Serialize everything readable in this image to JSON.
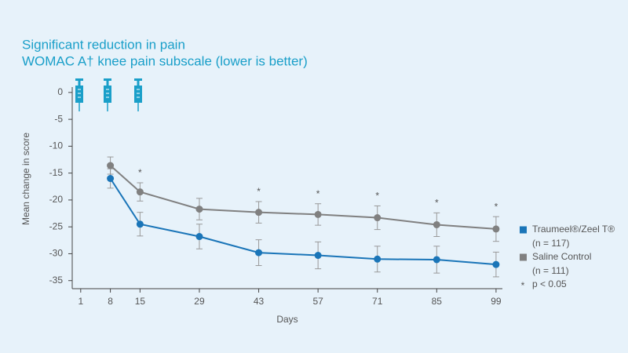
{
  "chart_data": {
    "type": "line",
    "title": "Significant reduction in pain",
    "subtitle": "WOMAC A† knee pain subscale (lower is better)",
    "x_label": "Days",
    "y_label": "Mean change in score",
    "x": [
      8,
      15,
      29,
      43,
      57,
      71,
      85,
      99
    ],
    "xlim": [
      -1,
      100.5
    ],
    "xticks": [
      1,
      8,
      15,
      29,
      43,
      57,
      71,
      85,
      99
    ],
    "ylim": [
      -36.5,
      1
    ],
    "yticks": [
      0,
      -5,
      -10,
      -15,
      -20,
      -25,
      -30,
      -35
    ],
    "series": [
      {
        "name": "Traumeel®/Zeel T®",
        "n_label": "(n = 117)",
        "color": "#1a75b8",
        "values": [
          -16,
          -24.5,
          -26.8,
          -29.8,
          -30.3,
          -31,
          -31.1,
          -32
        ],
        "errors": [
          1.8,
          2.2,
          2.3,
          2.4,
          2.5,
          2.4,
          2.5,
          2.3
        ]
      },
      {
        "name": "Saline Control",
        "n_label": "(n = 111)",
        "color": "#808080",
        "values": [
          -13.6,
          -18.5,
          -21.7,
          -22.3,
          -22.7,
          -23.3,
          -24.6,
          -25.4
        ],
        "errors": [
          1.6,
          1.7,
          2,
          2,
          2,
          2.2,
          2.2,
          2.3
        ]
      }
    ],
    "annotations": [
      {
        "text": "*",
        "x": 15
      },
      {
        "text": "*",
        "x": 43
      },
      {
        "text": "*",
        "x": 57
      },
      {
        "text": "*",
        "x": 71
      },
      {
        "text": "*",
        "x": 85
      },
      {
        "text": "*",
        "x": 99
      }
    ],
    "note": {
      "symbol": "*",
      "text": "p < 0.05"
    }
  }
}
